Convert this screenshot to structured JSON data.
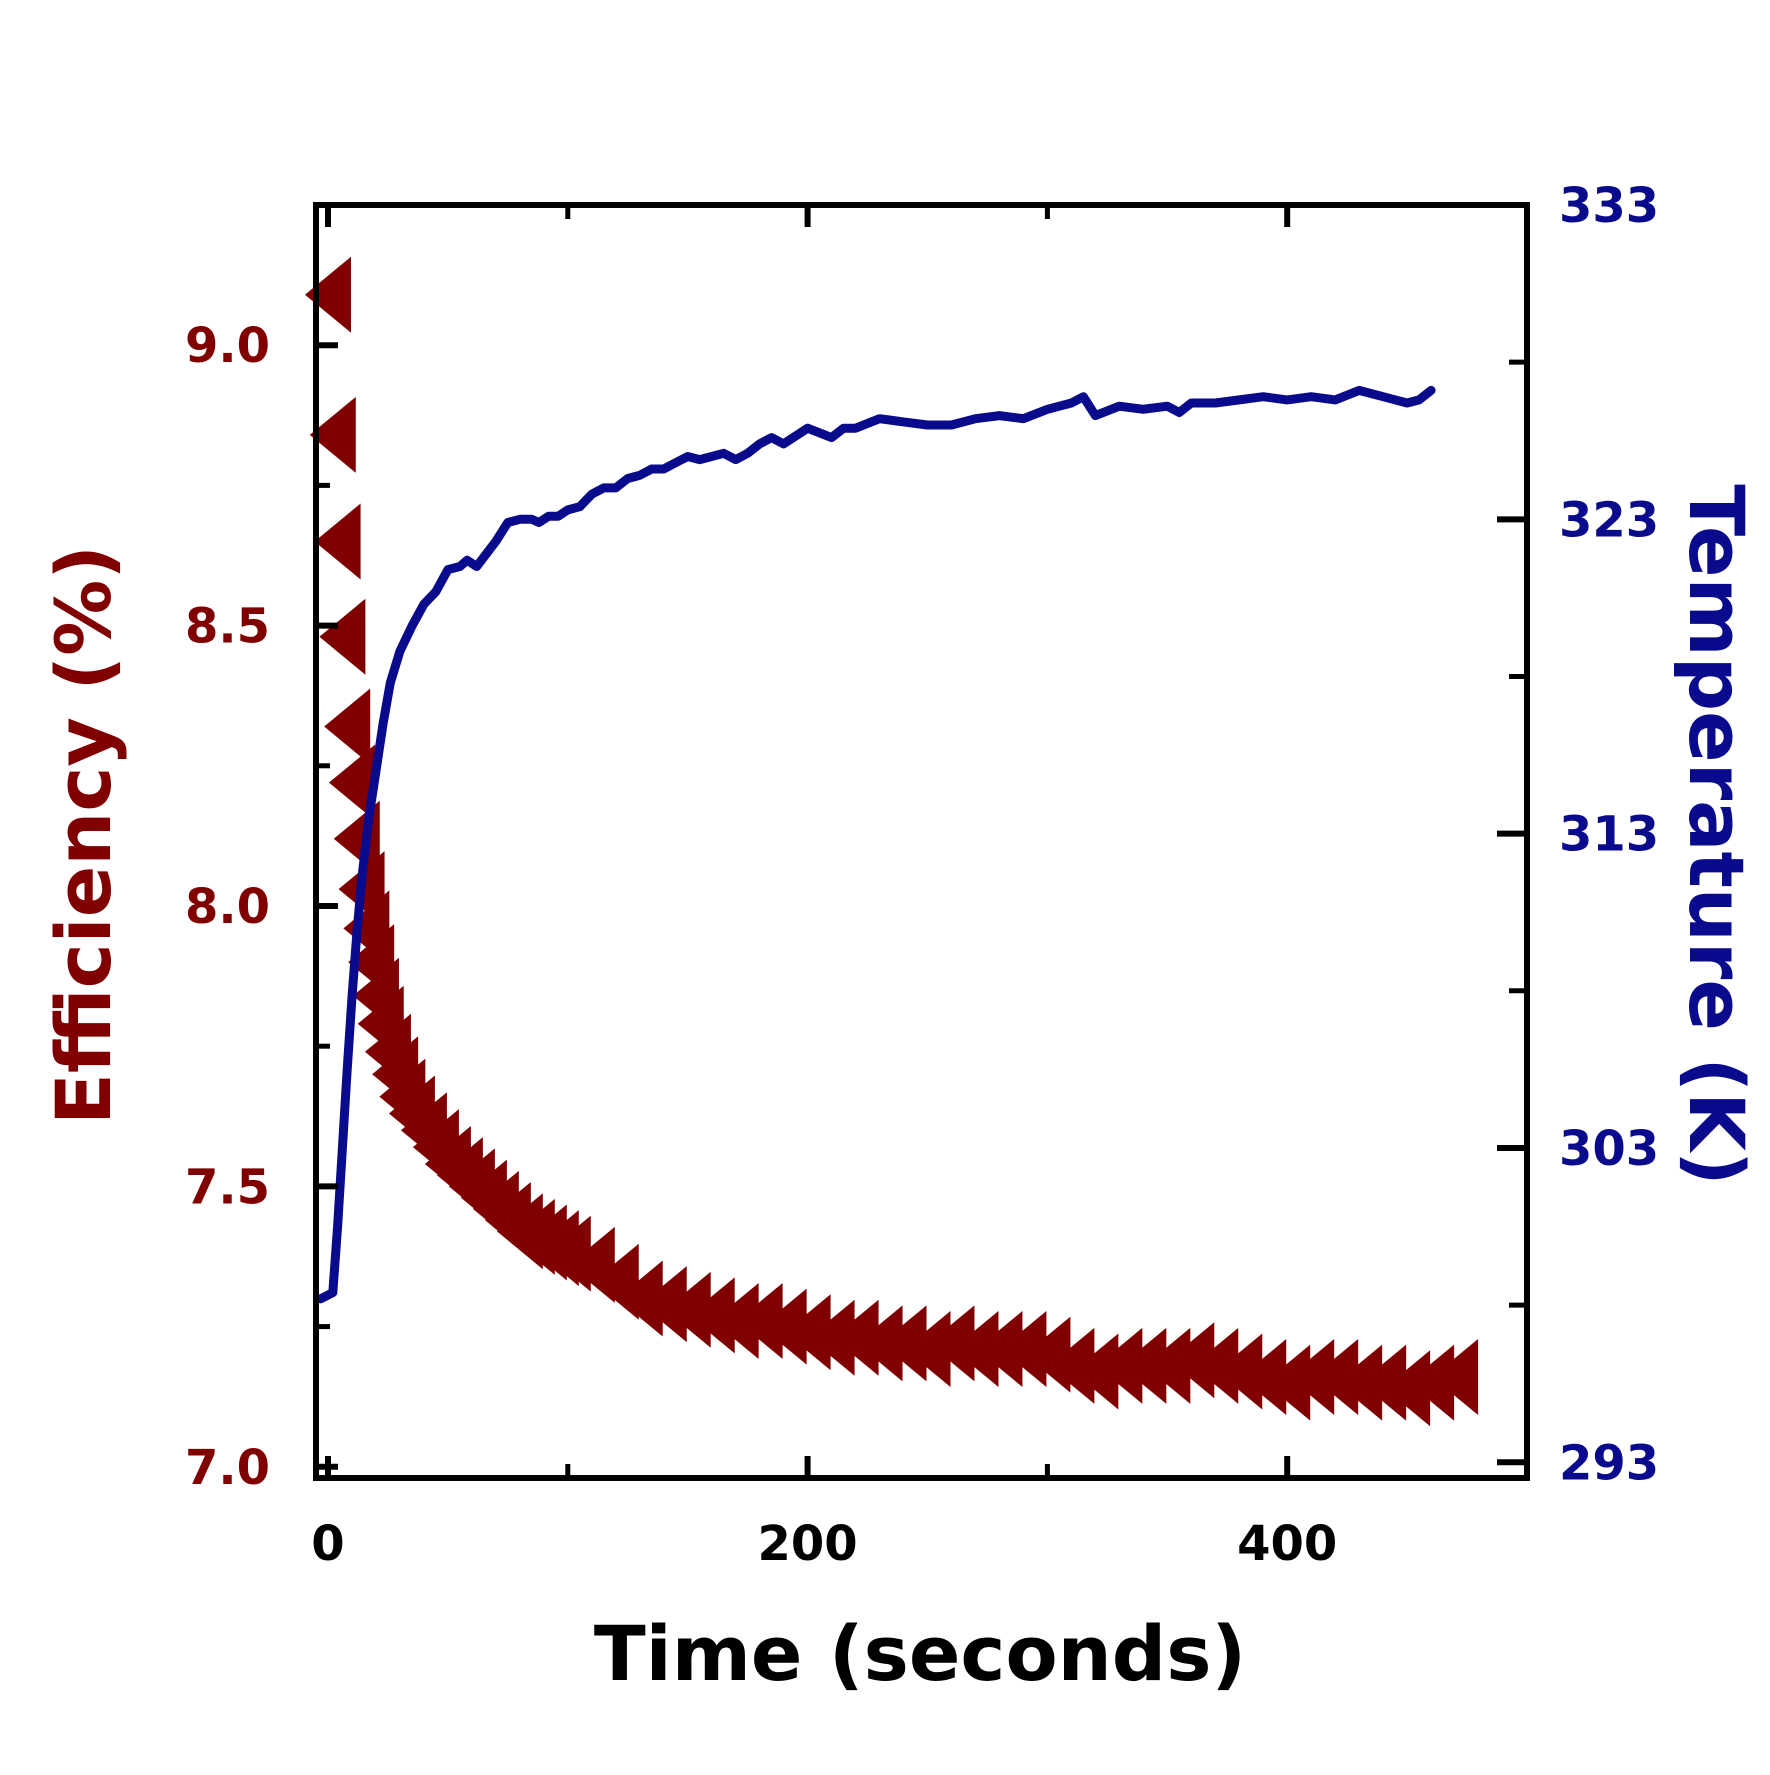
{
  "colors": {
    "efficiency": "#800000",
    "temperature": "#0a0a8c",
    "axes": "#000000",
    "background": "#ffffff"
  },
  "chart_data": {
    "type": "scatter",
    "title": "",
    "xlabel": "Time (seconds)",
    "ylabel_left": "Efficiency (%)",
    "ylabel_right": "Temperature (K)",
    "xlim": [
      -5,
      500
    ],
    "x_ticks": [
      0,
      200,
      400
    ],
    "ylim_left": [
      6.98,
      9.25
    ],
    "y_ticks_left": [
      "7.0",
      "7.5",
      "8.0",
      "8.5",
      "9.0"
    ],
    "ylim_right": [
      292.5,
      333
    ],
    "y_ticks_right": [
      "293",
      "303",
      "313",
      "323",
      "333"
    ],
    "grid": false,
    "legend": "none",
    "series": [
      {
        "axis": "left",
        "marker": "left-triangle",
        "color": "#800000",
        "x": [
          0,
          2,
          4,
          6,
          8,
          10,
          12,
          14,
          16,
          18,
          20,
          22,
          25,
          28,
          31,
          35,
          40,
          45,
          50,
          55,
          60,
          65,
          70,
          75,
          80,
          85,
          90,
          95,
          100,
          110,
          120,
          130,
          140,
          150,
          160,
          170,
          180,
          190,
          200,
          210,
          220,
          230,
          240,
          250,
          260,
          270,
          280,
          290,
          300,
          310,
          320,
          330,
          340,
          350,
          360,
          370,
          380,
          390,
          400,
          410,
          420,
          430,
          440,
          450,
          460,
          470
        ],
        "y": [
          9.09,
          8.84,
          8.65,
          8.48,
          8.32,
          8.22,
          8.12,
          8.03,
          7.96,
          7.9,
          7.84,
          7.79,
          7.74,
          7.7,
          7.66,
          7.63,
          7.6,
          7.57,
          7.54,
          7.52,
          7.5,
          7.48,
          7.46,
          7.44,
          7.42,
          7.41,
          7.4,
          7.39,
          7.38,
          7.36,
          7.33,
          7.3,
          7.29,
          7.28,
          7.27,
          7.26,
          7.26,
          7.25,
          7.24,
          7.23,
          7.23,
          7.22,
          7.22,
          7.21,
          7.22,
          7.21,
          7.21,
          7.21,
          7.2,
          7.18,
          7.17,
          7.18,
          7.18,
          7.18,
          7.19,
          7.18,
          7.17,
          7.16,
          7.15,
          7.16,
          7.16,
          7.15,
          7.15,
          7.14,
          7.15,
          7.16
        ]
      },
      {
        "axis": "right",
        "marker": "line",
        "color": "#0a0a8c",
        "x": [
          -3,
          2,
          4,
          6,
          8,
          10,
          12,
          14,
          17,
          20,
          23,
          26,
          30,
          35,
          40,
          45,
          50,
          55,
          58,
          62,
          66,
          70,
          75,
          80,
          85,
          88,
          92,
          96,
          100,
          105,
          110,
          115,
          120,
          125,
          130,
          135,
          140,
          145,
          150,
          155,
          160,
          165,
          170,
          175,
          180,
          185,
          190,
          200,
          210,
          215,
          220,
          230,
          240,
          250,
          260,
          270,
          280,
          290,
          300,
          310,
          315,
          320,
          330,
          340,
          350,
          355,
          360,
          370,
          380,
          390,
          400,
          410,
          420,
          430,
          440,
          450,
          455,
          460
        ],
        "y": [
          298.2,
          298.4,
          300.5,
          303.0,
          305.5,
          307.8,
          309.8,
          311.5,
          313.5,
          315.0,
          316.5,
          317.8,
          318.8,
          319.6,
          320.3,
          320.7,
          321.4,
          321.5,
          321.7,
          321.5,
          321.9,
          322.3,
          322.9,
          323.0,
          323.0,
          322.9,
          323.1,
          323.1,
          323.3,
          323.4,
          323.8,
          324.0,
          324.0,
          324.3,
          324.4,
          324.6,
          324.6,
          324.8,
          325.0,
          324.9,
          325.0,
          325.1,
          324.9,
          325.1,
          325.4,
          325.6,
          325.4,
          325.9,
          325.6,
          325.9,
          325.9,
          326.2,
          326.1,
          326.0,
          326.0,
          326.2,
          326.3,
          326.2,
          326.5,
          326.7,
          326.9,
          326.3,
          326.6,
          326.5,
          326.6,
          326.4,
          326.7,
          326.7,
          326.8,
          326.9,
          326.8,
          326.9,
          326.8,
          327.1,
          326.9,
          326.7,
          326.8,
          327.1
        ]
      }
    ]
  }
}
